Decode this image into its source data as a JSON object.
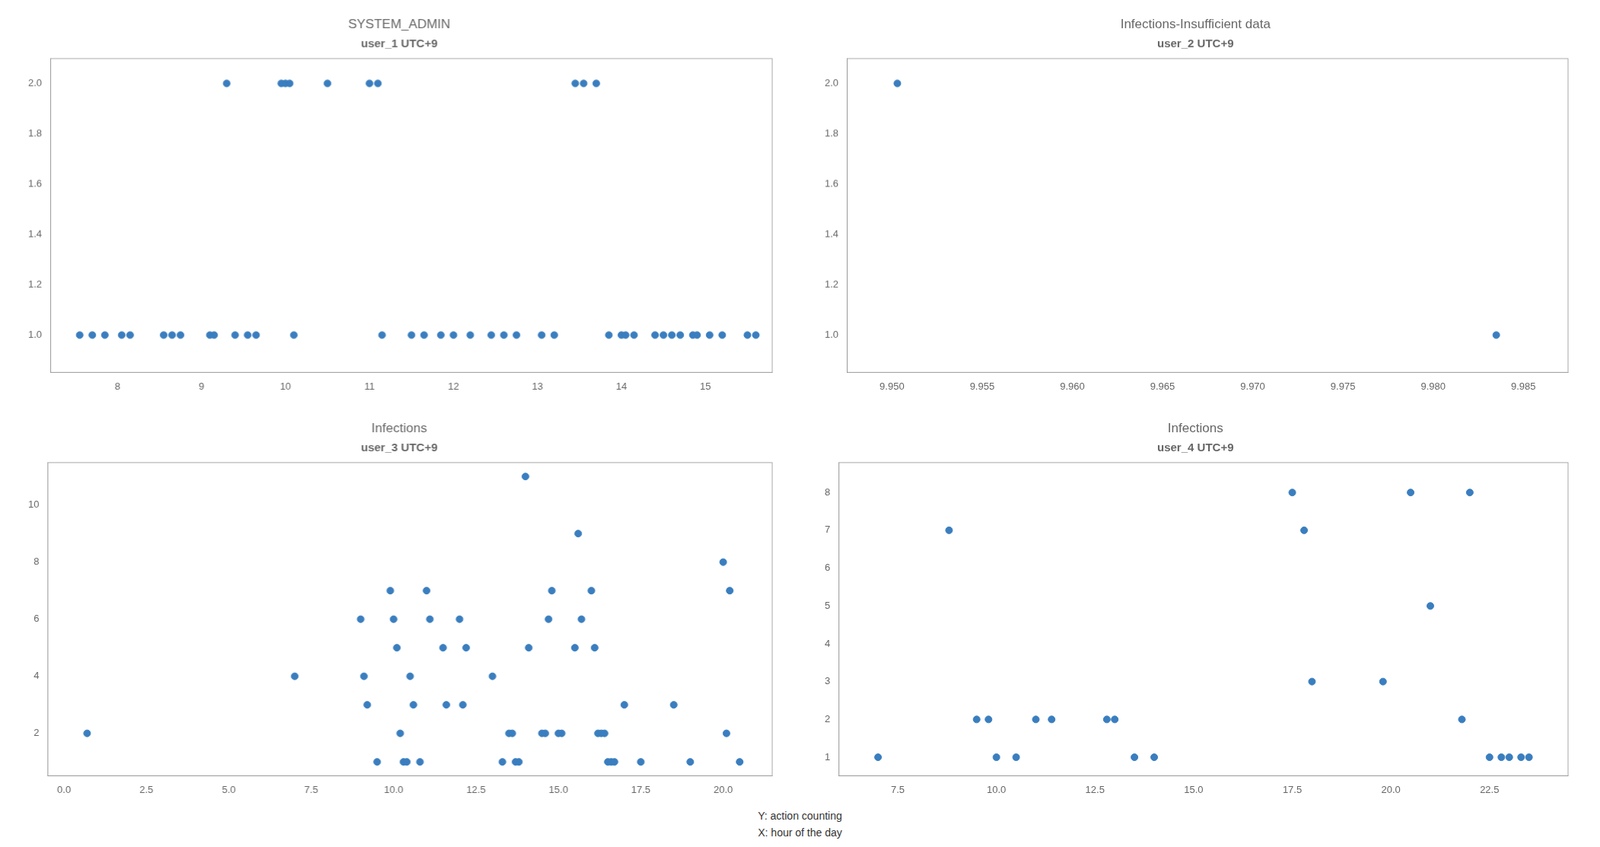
{
  "chart_data": [
    {
      "type": "scatter",
      "title": "SYSTEM_ADMIN",
      "subtitle": "user_1 UTC+9",
      "x": [
        7.55,
        7.7,
        7.85,
        8.05,
        8.15,
        8.55,
        8.65,
        8.75,
        9.1,
        9.15,
        9.3,
        9.4,
        9.55,
        9.65,
        9.95,
        10.0,
        10.05,
        10.1,
        10.5,
        11.0,
        11.1,
        11.15,
        11.5,
        11.65,
        11.85,
        12.0,
        12.2,
        12.45,
        12.6,
        12.75,
        13.05,
        13.2,
        13.45,
        13.55,
        13.7,
        13.85,
        14.0,
        14.05,
        14.15,
        14.4,
        14.5,
        14.6,
        14.7,
        14.85,
        14.9,
        15.05,
        15.2,
        15.5,
        15.6
      ],
      "values": [
        1,
        1,
        1,
        1,
        1,
        1,
        1,
        1,
        1,
        1,
        2,
        1,
        1,
        1,
        2,
        2,
        2,
        1,
        2,
        2,
        2,
        1,
        1,
        1,
        1,
        1,
        1,
        1,
        1,
        1,
        1,
        1,
        2,
        2,
        2,
        1,
        1,
        1,
        1,
        1,
        1,
        1,
        1,
        1,
        1,
        1,
        1,
        1,
        1
      ],
      "color": "#3a7ebf",
      "xlim": [
        7.2,
        15.8
      ],
      "ylim": [
        0.85,
        2.1
      ],
      "xticks": [
        8,
        9,
        10,
        11,
        12,
        13,
        14,
        15
      ],
      "yticks": [
        {
          "value": 1.0,
          "label": "1.0"
        },
        1.2,
        1.4,
        1.6,
        1.8,
        {
          "value": 2.0,
          "label": "2.0"
        }
      ],
      "grid": false
    },
    {
      "type": "scatter",
      "title": "Infections-Insufficient data",
      "subtitle": "user_2 UTC+9",
      "x": [
        9.9503,
        9.9835
      ],
      "values": [
        2,
        1
      ],
      "color": "#3a7ebf",
      "xlim": [
        9.9475,
        9.9875
      ],
      "ylim": [
        0.85,
        2.1
      ],
      "xticks": [
        {
          "value": 9.95,
          "label": "9.950"
        },
        {
          "value": 9.955,
          "label": "9.955"
        },
        {
          "value": 9.96,
          "label": "9.960"
        },
        {
          "value": 9.965,
          "label": "9.965"
        },
        {
          "value": 9.97,
          "label": "9.970"
        },
        {
          "value": 9.975,
          "label": "9.975"
        },
        {
          "value": 9.98,
          "label": "9.980"
        },
        {
          "value": 9.985,
          "label": "9.985"
        }
      ],
      "yticks": [
        {
          "value": 1.0,
          "label": "1.0"
        },
        1.2,
        1.4,
        1.6,
        1.8,
        {
          "value": 2.0,
          "label": "2.0"
        }
      ],
      "grid": false
    },
    {
      "type": "scatter",
      "title": "Infections",
      "subtitle": "user_3 UTC+9",
      "x": [
        0.7,
        7.0,
        9.0,
        9.1,
        9.2,
        9.5,
        9.9,
        10.0,
        10.1,
        10.2,
        10.3,
        10.4,
        10.5,
        10.6,
        10.8,
        11.0,
        11.1,
        11.5,
        11.6,
        12.0,
        12.1,
        12.2,
        13.0,
        13.3,
        13.5,
        13.6,
        13.7,
        13.8,
        14.0,
        14.1,
        14.5,
        14.6,
        14.7,
        14.8,
        15.0,
        15.1,
        15.5,
        15.6,
        15.7,
        16.0,
        16.1,
        16.2,
        16.3,
        16.4,
        16.5,
        16.6,
        16.7,
        17.0,
        17.5,
        18.5,
        19.0,
        20.0,
        20.1,
        20.2,
        20.5
      ],
      "values": [
        2,
        4,
        6,
        4,
        3,
        1,
        7,
        6,
        5,
        2,
        1,
        1,
        4,
        3,
        1,
        7,
        6,
        5,
        3,
        6,
        3,
        5,
        4,
        1,
        2,
        2,
        1,
        1,
        11,
        5,
        2,
        2,
        6,
        7,
        2,
        2,
        5,
        9,
        6,
        7,
        5,
        2,
        2,
        2,
        1,
        1,
        1,
        3,
        1,
        3,
        1,
        8,
        2,
        7,
        1
      ],
      "color": "#3a7ebf",
      "xlim": [
        -0.5,
        21.5
      ],
      "ylim": [
        0.5,
        11.5
      ],
      "xticks": [
        {
          "value": 0.0,
          "label": "0.0"
        },
        2.5,
        {
          "value": 5.0,
          "label": "5.0"
        },
        7.5,
        {
          "value": 10.0,
          "label": "10.0"
        },
        12.5,
        {
          "value": 15.0,
          "label": "15.0"
        },
        17.5,
        {
          "value": 20.0,
          "label": "20.0"
        }
      ],
      "yticks": [
        2,
        4,
        6,
        8,
        10
      ],
      "grid": false
    },
    {
      "type": "scatter",
      "title": "Infections",
      "subtitle": "user_4 UTC+9",
      "x": [
        7.0,
        8.8,
        9.5,
        9.8,
        10.0,
        10.5,
        11.0,
        11.4,
        12.8,
        13.0,
        13.5,
        14.0,
        17.5,
        17.8,
        18.0,
        19.8,
        20.5,
        21.0,
        21.8,
        22.0,
        22.5,
        22.8,
        23.0,
        23.3,
        23.5
      ],
      "values": [
        1,
        7,
        2,
        2,
        1,
        1,
        2,
        2,
        2,
        2,
        1,
        1,
        8,
        7,
        3,
        3,
        8,
        5,
        2,
        8,
        1,
        1,
        1,
        1,
        1
      ],
      "color": "#3a7ebf",
      "xlim": [
        6.0,
        24.5
      ],
      "ylim": [
        0.5,
        8.8
      ],
      "xticks": [
        7.5,
        {
          "value": 10.0,
          "label": "10.0"
        },
        12.5,
        {
          "value": 15.0,
          "label": "15.0"
        },
        17.5,
        {
          "value": 20.0,
          "label": "20.0"
        },
        22.5
      ],
      "yticks": [
        1,
        2,
        3,
        4,
        5,
        6,
        7,
        8
      ],
      "grid": false
    }
  ],
  "annotations": [
    "Y: action counting",
    "X: hour of the day"
  ]
}
